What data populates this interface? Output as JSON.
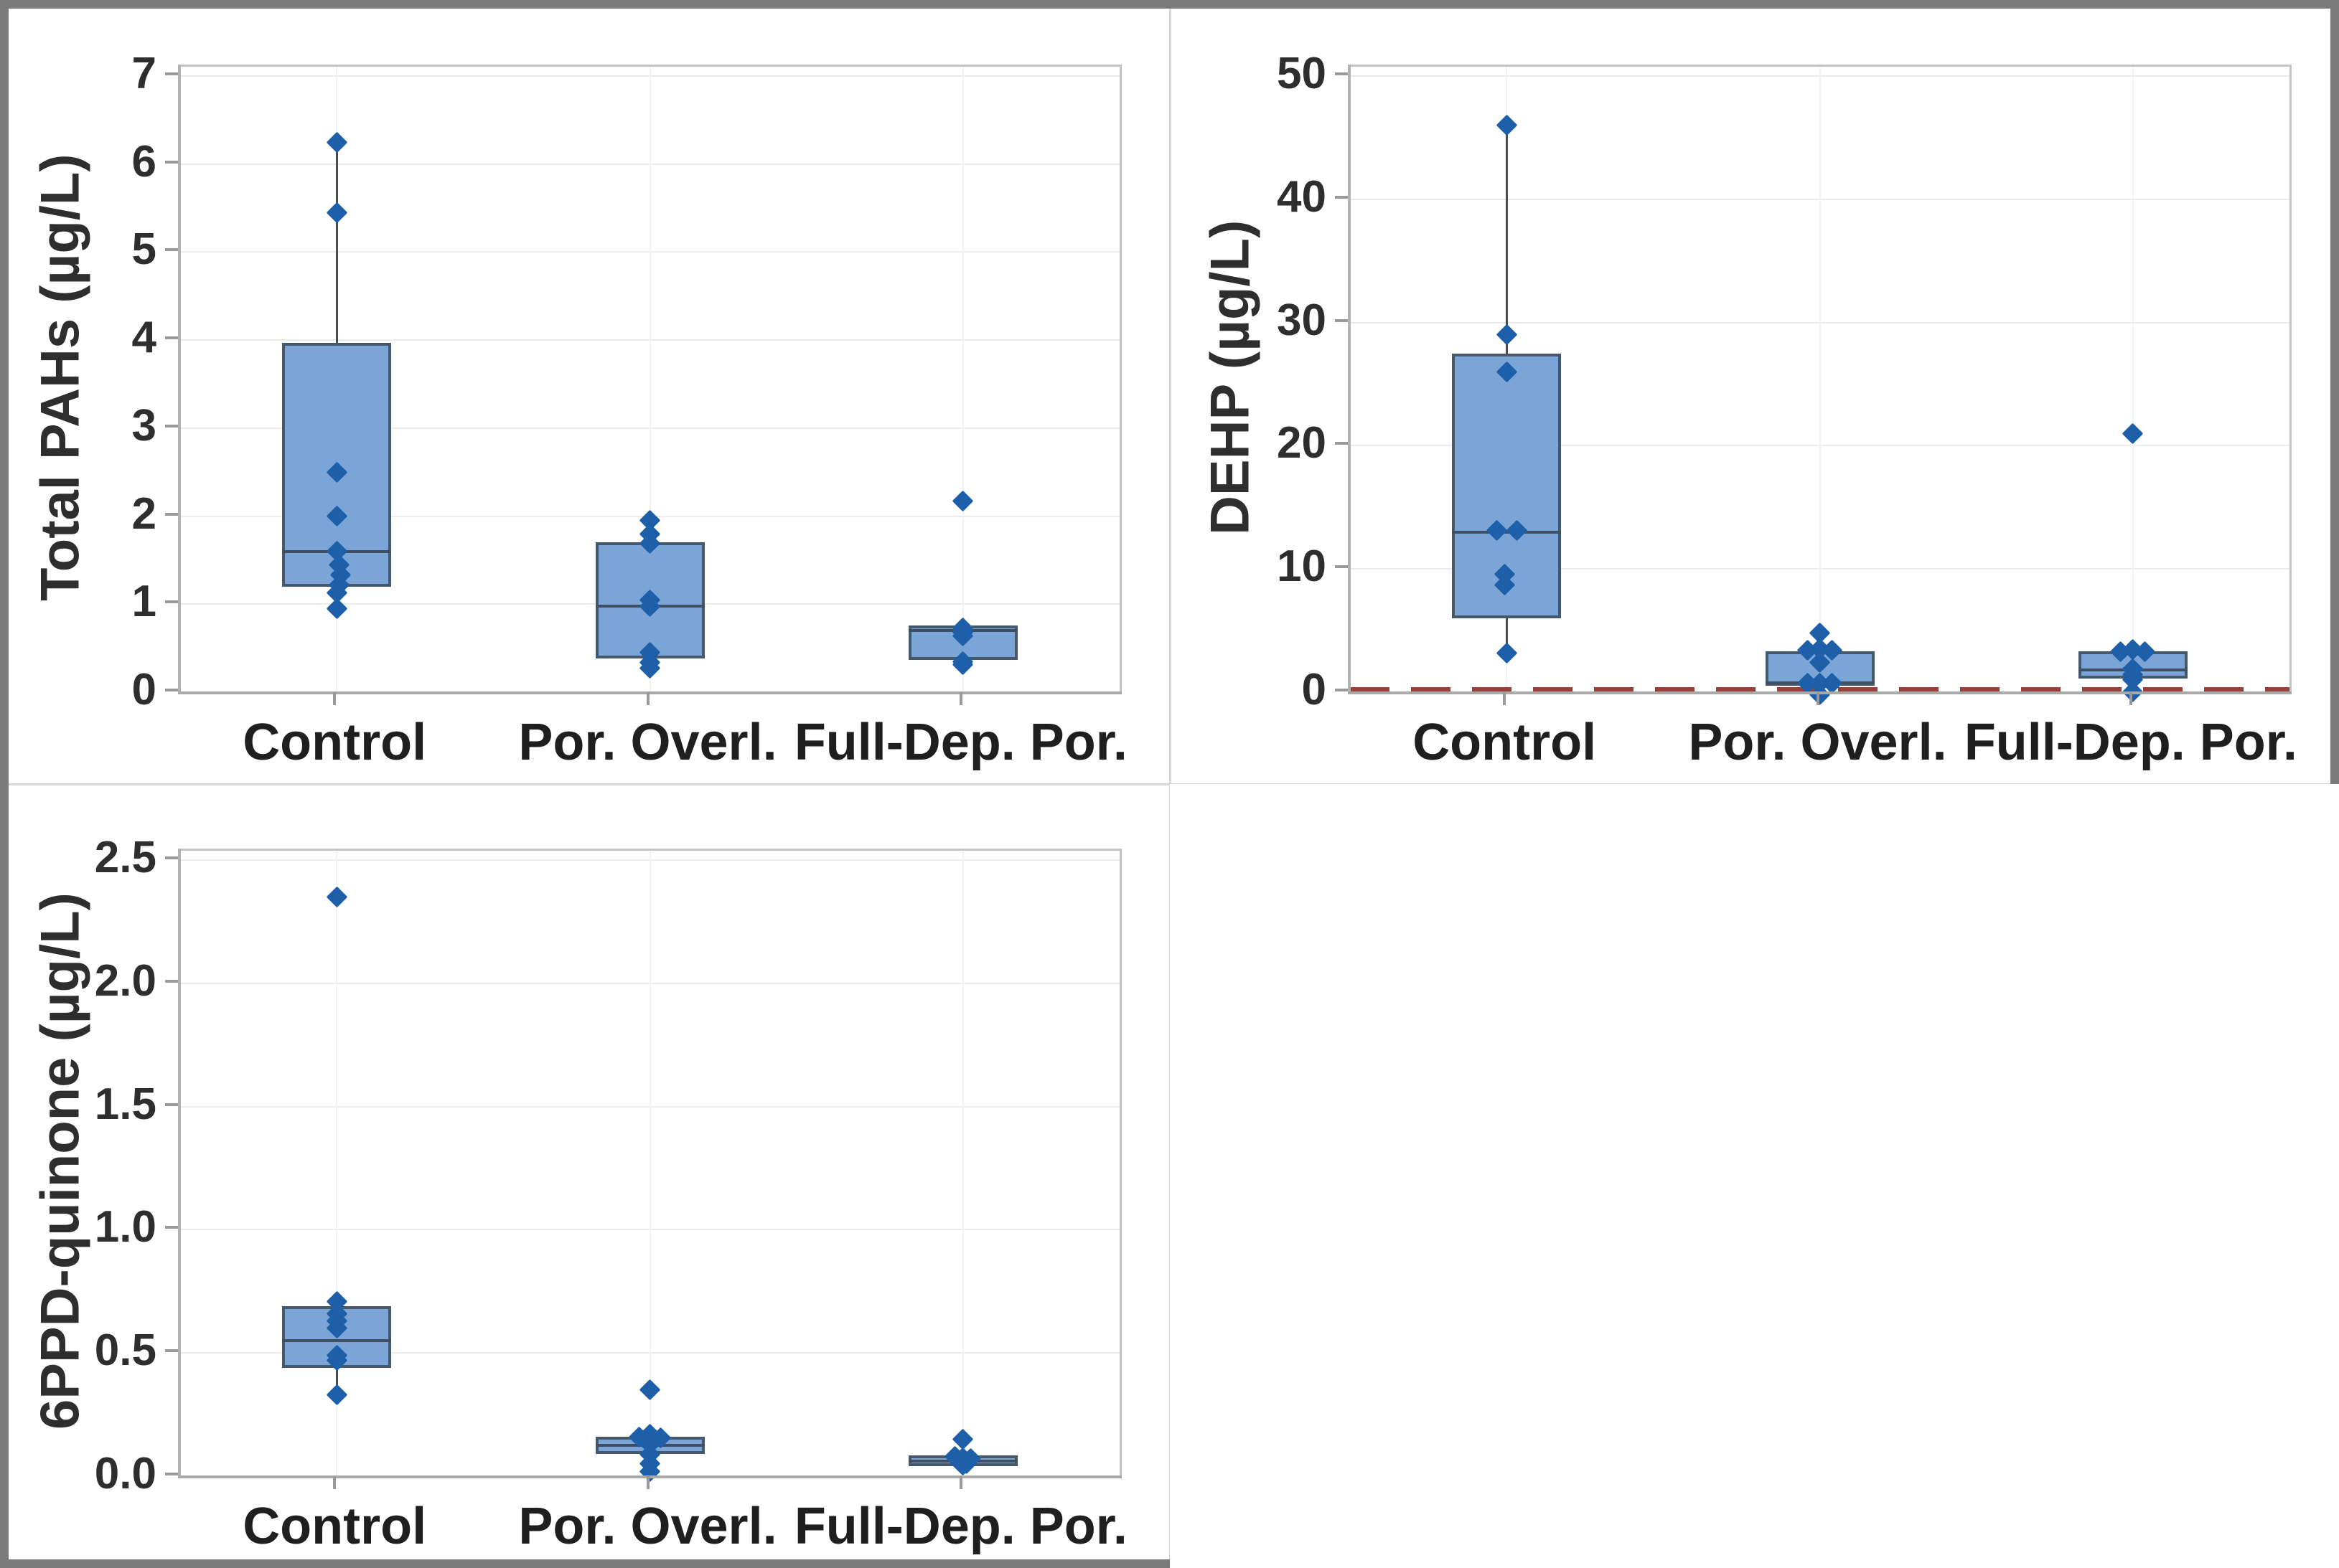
{
  "figure": {
    "background": "#ffffff",
    "frame_color": "#7b7b7b",
    "divider_color": "#d8d8d8",
    "box_fill": "#7ba4d7",
    "box_border": "#46586c",
    "median_color": "#3f4f61",
    "point_color": "#1e5fa9",
    "whisker_color": "#4c4c4c",
    "grid_color": "#ececec",
    "reference_line_color": "#9a3f38"
  },
  "chart_data": [
    {
      "type": "boxplot",
      "panel": "top-left",
      "title": "",
      "ylabel": "Total PAHs (µg/L)",
      "xlabel": "",
      "ylim": [
        0,
        7
      ],
      "yticks": [
        0,
        1,
        2,
        3,
        4,
        5,
        6,
        7
      ],
      "ytick_labels": [
        "0",
        "1",
        "2",
        "3",
        "4",
        "5",
        "6",
        "7"
      ],
      "grid": "horizontal+category",
      "legend": "none",
      "categories": [
        "Control",
        "Por. Overl.",
        "Full-Dep. Por."
      ],
      "series": [
        {
          "category": "Control",
          "q1": 1.2,
          "median": 1.6,
          "q3": 3.97,
          "whisker_low": 0.95,
          "whisker_high": 6.25,
          "points": [
            [
              6.25,
              0
            ],
            [
              5.45,
              0
            ],
            [
              2.5,
              0
            ],
            [
              2.0,
              0
            ],
            [
              1.6,
              0
            ],
            [
              1.45,
              3
            ],
            [
              1.33,
              5
            ],
            [
              1.22,
              3
            ],
            [
              1.13,
              0
            ],
            [
              0.95,
              0
            ]
          ]
        },
        {
          "category": "Por. Overl.",
          "q1": 0.38,
          "median": 0.98,
          "q3": 1.7,
          "whisker_low": 0.27,
          "whisker_high": 1.95,
          "points": [
            [
              1.95,
              0
            ],
            [
              1.8,
              0
            ],
            [
              1.69,
              0
            ],
            [
              1.05,
              0
            ],
            [
              0.97,
              0
            ],
            [
              0.45,
              0
            ],
            [
              0.34,
              0
            ],
            [
              0.27,
              0
            ]
          ]
        },
        {
          "category": "Full-Dep. Por.",
          "q1": 0.37,
          "median": 0.7,
          "q3": 0.76,
          "whisker_low": 0.37,
          "whisker_high": 0.76,
          "points": [
            [
              2.17,
              0
            ],
            [
              0.73,
              0
            ],
            [
              0.68,
              0
            ],
            [
              0.64,
              0
            ],
            [
              0.35,
              0
            ],
            [
              0.31,
              0
            ]
          ]
        }
      ]
    },
    {
      "type": "boxplot",
      "panel": "top-right",
      "title": "",
      "ylabel": "DEHP (µg/L)",
      "xlabel": "",
      "ylim": [
        0,
        50
      ],
      "yticks": [
        0,
        10,
        20,
        30,
        40,
        50
      ],
      "ytick_labels": [
        "0",
        "10",
        "20",
        "30",
        "40",
        "50"
      ],
      "grid": "horizontal+category",
      "legend": "none",
      "reference_line": {
        "value": 0.25,
        "style": "dashed",
        "color": "#9a3f38"
      },
      "categories": [
        "Control",
        "Por. Overl.",
        "Full-Dep. Por."
      ],
      "series": [
        {
          "category": "Control",
          "q1": 6.0,
          "median": 13.0,
          "q3": 27.5,
          "whisker_low": 3.2,
          "whisker_high": 46,
          "points": [
            [
              46,
              0
            ],
            [
              29,
              0
            ],
            [
              26,
              0
            ],
            [
              13.1,
              -14
            ],
            [
              13.1,
              14
            ],
            [
              9.6,
              -3
            ],
            [
              8.7,
              -3
            ],
            [
              3.2,
              0
            ]
          ]
        },
        {
          "category": "Por. Overl.",
          "q1": 0.55,
          "median": 0.75,
          "q3": 3.3,
          "whisker_low": 0.0,
          "whisker_high": 4.8,
          "points": [
            [
              4.8,
              0
            ],
            [
              3.4,
              -17
            ],
            [
              3.5,
              0
            ],
            [
              3.4,
              17
            ],
            [
              2.4,
              0
            ],
            [
              0.7,
              -17
            ],
            [
              0.7,
              0
            ],
            [
              0.7,
              17
            ],
            [
              -0.2,
              0
            ]
          ]
        },
        {
          "category": "Full-Dep. Por.",
          "q1": 1.1,
          "median": 1.8,
          "q3": 3.3,
          "whisker_low": 0.1,
          "whisker_high": 3.3,
          "points": [
            [
              21,
              0
            ],
            [
              3.3,
              -17
            ],
            [
              3.45,
              0
            ],
            [
              3.3,
              17
            ],
            [
              1.9,
              0
            ],
            [
              1.4,
              0
            ],
            [
              1.0,
              0
            ],
            [
              0.05,
              0
            ]
          ]
        }
      ]
    },
    {
      "type": "boxplot",
      "panel": "bottom-left",
      "title": "",
      "ylabel": "6PPD-quinone (µg/L)",
      "xlabel": "",
      "ylim": [
        0,
        2.5
      ],
      "yticks": [
        0,
        0.5,
        1.0,
        1.5,
        2.0,
        2.5
      ],
      "ytick_labels": [
        "0.0",
        "0.5",
        "1.0",
        "1.5",
        "2.0",
        "2.5"
      ],
      "grid": "horizontal+category",
      "legend": "none",
      "categories": [
        "Control",
        "Por. Overl.",
        "Full-Dep. Por."
      ],
      "series": [
        {
          "category": "Control",
          "q1": 0.44,
          "median": 0.55,
          "q3": 0.69,
          "whisker_low": 0.33,
          "whisker_high": 0.71,
          "points": [
            [
              2.35,
              0
            ],
            [
              0.71,
              0
            ],
            [
              0.66,
              0
            ],
            [
              0.63,
              0
            ],
            [
              0.6,
              0
            ],
            [
              0.49,
              0
            ],
            [
              0.47,
              0
            ],
            [
              0.33,
              0
            ]
          ]
        },
        {
          "category": "Por. Overl.",
          "q1": 0.09,
          "median": 0.125,
          "q3": 0.16,
          "whisker_low": 0.02,
          "whisker_high": 0.16,
          "points": [
            [
              0.35,
              0
            ],
            [
              0.16,
              -15
            ],
            [
              0.17,
              0
            ],
            [
              0.155,
              15
            ],
            [
              0.13,
              0
            ],
            [
              0.09,
              0
            ],
            [
              0.05,
              0
            ],
            [
              0.02,
              0
            ]
          ]
        },
        {
          "category": "Full-Dep. Por.",
          "q1": 0.04,
          "median": 0.06,
          "q3": 0.085,
          "whisker_low": 0.005,
          "whisker_high": 0.15,
          "points": [
            [
              0.15,
              0
            ],
            [
              0.08,
              -11
            ],
            [
              0.075,
              0
            ],
            [
              0.07,
              11
            ],
            [
              0.06,
              -5
            ],
            [
              0.05,
              5
            ],
            [
              0.045,
              0
            ]
          ]
        }
      ]
    }
  ]
}
